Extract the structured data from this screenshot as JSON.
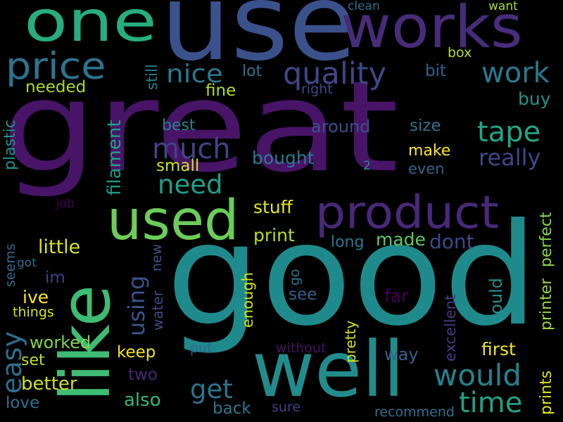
{
  "background": "#000000",
  "words": [
    {
      "text": "great",
      "color": "#481467"
    },
    {
      "text": "good",
      "color": "#1f8a8c"
    },
    {
      "text": "use",
      "color": "#3b518b"
    },
    {
      "text": "works",
      "color": "#472c7a"
    },
    {
      "text": "one",
      "color": "#27ad81"
    },
    {
      "text": "well",
      "color": "#228c8d"
    },
    {
      "text": "like",
      "color": "#3fbc73"
    },
    {
      "text": "used",
      "color": "#6ccd5a"
    },
    {
      "text": "product",
      "color": "#482878"
    },
    {
      "text": "price",
      "color": "#2c738e"
    },
    {
      "text": "quality",
      "color": "#3f4788"
    },
    {
      "text": "work",
      "color": "#2a788e"
    },
    {
      "text": "nice",
      "color": "#2a788e"
    },
    {
      "text": "tape",
      "color": "#21a685"
    },
    {
      "text": "much",
      "color": "#414487"
    },
    {
      "text": "would",
      "color": "#26828e"
    },
    {
      "text": "time",
      "color": "#1fa187"
    },
    {
      "text": "need",
      "color": "#1f9e89"
    },
    {
      "text": "easy",
      "color": "#2e6e8e"
    },
    {
      "text": "get",
      "color": "#2c728e"
    },
    {
      "text": "using",
      "color": "#3b528b"
    },
    {
      "text": "really",
      "color": "#404688"
    },
    {
      "text": "filament",
      "color": "#1f9e89"
    },
    {
      "text": "little",
      "color": "#dde318"
    },
    {
      "text": "stuff",
      "color": "#e2e418"
    },
    {
      "text": "print",
      "color": "#b5de2b"
    },
    {
      "text": "dont",
      "color": "#3e4989"
    },
    {
      "text": "made",
      "color": "#5ec962"
    },
    {
      "text": "long",
      "color": "#2a788e"
    },
    {
      "text": "printer",
      "color": "#95d840"
    },
    {
      "text": "perfect",
      "color": "#86d549"
    },
    {
      "text": "prints",
      "color": "#dde318"
    },
    {
      "text": "excellent",
      "color": "#453882"
    },
    {
      "text": "could",
      "color": "#20928c"
    },
    {
      "text": "far",
      "color": "#440154"
    },
    {
      "text": "see",
      "color": "#365d8d"
    },
    {
      "text": "enough",
      "color": "#d0e11c"
    },
    {
      "text": "first",
      "color": "#f1e51d"
    },
    {
      "text": "way",
      "color": "#33628d"
    },
    {
      "text": "pretty",
      "color": "#dde318"
    },
    {
      "text": "without",
      "color": "#471063"
    },
    {
      "text": "put",
      "color": "#31688e"
    },
    {
      "text": "two",
      "color": "#482878"
    },
    {
      "text": "keep",
      "color": "#f1e51d"
    },
    {
      "text": "also",
      "color": "#35b779"
    },
    {
      "text": "back",
      "color": "#2a788e"
    },
    {
      "text": "sure",
      "color": "#433e85"
    },
    {
      "text": "recommend",
      "color": "#2d708e"
    },
    {
      "text": "better",
      "color": "#d0e11c"
    },
    {
      "text": "worked",
      "color": "#84d44b"
    },
    {
      "text": "set",
      "color": "#c2df23"
    },
    {
      "text": "love",
      "color": "#2d708e"
    },
    {
      "text": "things",
      "color": "#d8e219"
    },
    {
      "text": "ive",
      "color": "#fde725"
    },
    {
      "text": "im",
      "color": "#433e85"
    },
    {
      "text": "seems",
      "color": "#31688e"
    },
    {
      "text": "got",
      "color": "#2d708e"
    },
    {
      "text": "job",
      "color": "#440154"
    },
    {
      "text": "water",
      "color": "#3e4a89"
    },
    {
      "text": "new",
      "color": "#3b528b"
    },
    {
      "text": "go",
      "color": "#2a788e"
    },
    {
      "text": "plastic",
      "color": "#1f968b"
    },
    {
      "text": "needed",
      "color": "#a8db34"
    },
    {
      "text": "still",
      "color": "#26828e"
    },
    {
      "text": "fine",
      "color": "#b0dd2f"
    },
    {
      "text": "lot",
      "color": "#2c728e"
    },
    {
      "text": "bit",
      "color": "#35608d"
    },
    {
      "text": "right",
      "color": "#3e4a89"
    },
    {
      "text": "box",
      "color": "#b5de2b"
    },
    {
      "text": "buy",
      "color": "#20928c"
    },
    {
      "text": "clean",
      "color": "#2d708e"
    },
    {
      "text": "want",
      "color": "#a2da37"
    },
    {
      "text": "best",
      "color": "#26828e"
    },
    {
      "text": "around",
      "color": "#3c508b"
    },
    {
      "text": "size",
      "color": "#2c738e"
    },
    {
      "text": "bought",
      "color": "#287c8e"
    },
    {
      "text": "make",
      "color": "#fde725"
    },
    {
      "text": "even",
      "color": "#33638d"
    },
    {
      "text": "small",
      "color": "#d0e11c"
    },
    {
      "text": "2",
      "color": "#1f968b"
    }
  ]
}
